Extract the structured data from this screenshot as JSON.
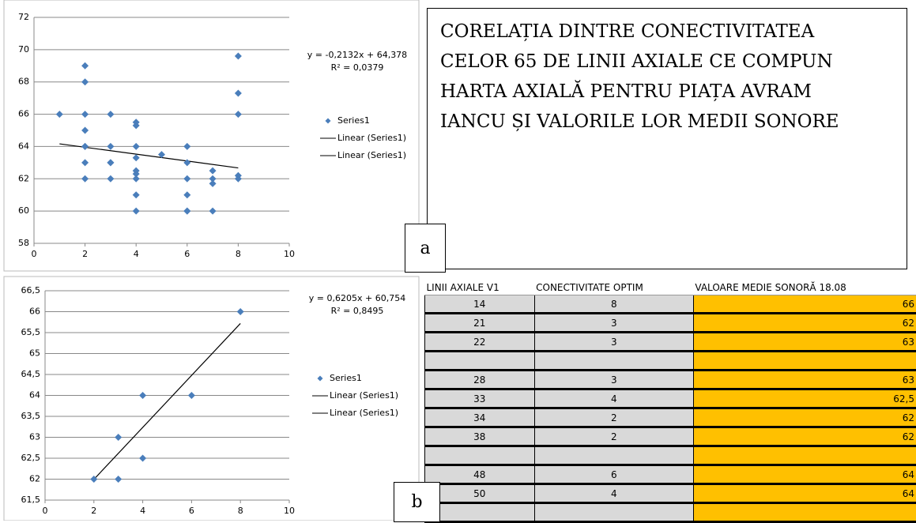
{
  "chart_data": [
    {
      "type": "scatter",
      "series": [
        {
          "name": "Series1",
          "color": "#4a7ebb",
          "x": [
            1,
            2,
            2,
            2,
            2,
            2,
            2,
            2,
            2,
            3,
            3,
            3,
            3,
            3,
            4,
            4,
            4,
            4,
            4,
            4,
            4,
            4,
            4,
            5,
            6,
            6,
            6,
            6,
            6,
            6,
            7,
            7,
            7,
            7,
            8,
            8,
            8,
            8,
            8
          ],
          "values": [
            66,
            69,
            68,
            66,
            65,
            64,
            64,
            63,
            62,
            66,
            64,
            63,
            63,
            62,
            65.5,
            65.3,
            64,
            63.3,
            62.5,
            62.3,
            62,
            61,
            60,
            63.5,
            64,
            63,
            62,
            61,
            60,
            60,
            62.5,
            62,
            61.7,
            60,
            69.6,
            67.3,
            66,
            62.2,
            62
          ]
        }
      ],
      "trendline": {
        "slope": -0.2132,
        "intercept": 64.378,
        "equation": "y = -0,2132x + 64,378",
        "r2": "R² = 0,0379",
        "legend": [
          "Linear (Series1)",
          "Linear (Series1)"
        ]
      },
      "xlim": [
        0,
        10
      ],
      "xticks": [
        0,
        2,
        4,
        6,
        8,
        10
      ],
      "ylim": [
        58,
        72
      ],
      "yticks": [
        58,
        60,
        62,
        64,
        66,
        68,
        70,
        72
      ],
      "grid": true,
      "label": "a"
    },
    {
      "type": "scatter",
      "series": [
        {
          "name": "Series1",
          "color": "#4a7ebb",
          "x": [
            2,
            3,
            3,
            4,
            4,
            6,
            8
          ],
          "values": [
            62,
            63,
            62,
            64,
            62.5,
            64,
            66
          ]
        }
      ],
      "trendline": {
        "slope": 0.6205,
        "intercept": 60.754,
        "equation": "y = 0,6205x + 60,754",
        "r2": "R² = 0,8495",
        "legend": [
          "Linear (Series1)",
          "Linear (Series1)"
        ]
      },
      "xlim": [
        0,
        10
      ],
      "xticks": [
        0,
        2,
        4,
        6,
        8,
        10
      ],
      "ylim": [
        61.5,
        66.5
      ],
      "yticks": [
        {
          "value": 61.5,
          "label": "61,5"
        },
        62,
        {
          "value": 62.5,
          "label": "62,5"
        },
        63,
        {
          "value": 63.5,
          "label": "63,5"
        },
        64,
        {
          "value": 64.5,
          "label": "64,5"
        },
        65,
        {
          "value": 65.5,
          "label": "65,5"
        },
        66,
        {
          "value": 66.5,
          "label": "66,5"
        }
      ],
      "grid": true,
      "label": "b"
    }
  ],
  "textbox": {
    "lines": [
      "CORELAȚIA DINTRE CONECTIVITATEA",
      "CELOR 65 DE LINII AXIALE CE COMPUN",
      "HARTA AXIALĂ PENTRU PIAȚA AVRAM",
      "IANCU ȘI VALORILE LOR MEDII SONORE"
    ]
  },
  "table": {
    "headers": [
      "LINII AXIALE V1",
      "CONECTIVITATE OPTIM",
      "VALOARE MEDIE SONORĂ 18.08"
    ],
    "rows": [
      [
        14,
        8,
        66
      ],
      [
        21,
        3,
        62
      ],
      [
        22,
        3,
        63
      ],
      [
        null,
        null,
        null
      ],
      [
        28,
        3,
        63
      ],
      [
        33,
        4,
        "62,5"
      ],
      [
        34,
        2,
        62
      ],
      [
        38,
        2,
        62
      ],
      [
        null,
        null,
        null
      ],
      [
        48,
        6,
        64
      ],
      [
        50,
        4,
        64
      ],
      [
        null,
        null,
        null
      ]
    ]
  }
}
